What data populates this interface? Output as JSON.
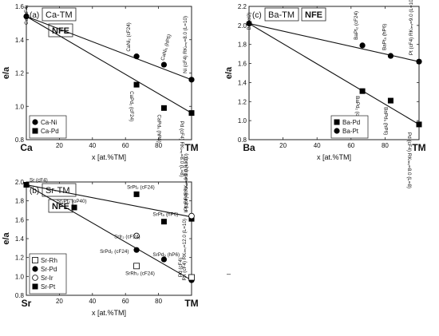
{
  "chart_data": [
    {
      "type": "scatter",
      "id": "ca",
      "panel_label": "(a)",
      "system": "Ca-TM",
      "badge": "NFE",
      "xlabel": "x [at.%TM]",
      "ylabel": "e/a",
      "xlim": [
        0,
        100
      ],
      "ylim": [
        0.8,
        1.6
      ],
      "x_ticks": [
        "20",
        "40",
        "60",
        "80"
      ],
      "y_ticks": [
        "0.8",
        "1.0",
        "1.2",
        "1.4",
        "1.6"
      ],
      "x_end_labels": [
        "Ca",
        "TM"
      ],
      "legend": {
        "position": "bottom-left",
        "entries": [
          {
            "label": "Ca-Ni",
            "marker": "circle"
          },
          {
            "label": "Ca-Pd",
            "marker": "square"
          }
        ]
      },
      "series": [
        {
          "name": "Ca-Ni",
          "marker": "circle",
          "points": [
            {
              "x": 0,
              "y": 1.54,
              "label": "Ca (cF4)"
            },
            {
              "x": 66.7,
              "y": 1.3,
              "label": "CaNi₂ (cF24)"
            },
            {
              "x": 83.3,
              "y": 1.25,
              "label": "CaNi₅ (hP6)"
            },
            {
              "x": 100,
              "y": 1.16,
              "label": "Ni (cF4) RKₗₘᵣ=8.0 (L=10)"
            }
          ]
        },
        {
          "name": "Ca-Pd",
          "marker": "square",
          "points": [
            {
              "x": 66.7,
              "y": 1.13,
              "label": "CaPd₂ (cF24)"
            },
            {
              "x": 83.3,
              "y": 0.99,
              "label": "CaPd₅ (hP6)"
            },
            {
              "x": 100,
              "y": 0.96,
              "label": "Pd (cF4) RKₗₘᵣ=8.0 (L=8)"
            }
          ]
        }
      ],
      "fit_lines": [
        {
          "from": [
            0,
            1.54
          ],
          "to": [
            100,
            1.16
          ],
          "width": 1.3
        },
        {
          "from": [
            0,
            1.54
          ],
          "to": [
            100,
            0.96
          ],
          "width": 1.3
        }
      ]
    },
    {
      "type": "scatter",
      "id": "ba",
      "panel_label": "(c)",
      "system": "Ba-TM",
      "badge": "NFE",
      "xlabel": "x [at.%TM]",
      "ylabel": "e/a",
      "xlim": [
        0,
        100
      ],
      "ylim": [
        0.8,
        2.2
      ],
      "x_ticks": [
        "20",
        "40",
        "60",
        "80"
      ],
      "y_ticks": [
        "0.8",
        "1.0",
        "1.2",
        "1.4",
        "1.6",
        "1.8",
        "2.0",
        "2.2"
      ],
      "x_end_labels": [
        "Ba",
        "TM"
      ],
      "legend": {
        "position": "bottom-right",
        "entries": [
          {
            "label": "Ba-Pd",
            "marker": "square"
          },
          {
            "label": "Ba-Pt",
            "marker": "circle"
          }
        ]
      },
      "series": [
        {
          "name": "Ba-Pt",
          "marker": "circle",
          "points": [
            {
              "x": 0,
              "y": 2.02,
              "label": "Ba (cI2)"
            },
            {
              "x": 66.7,
              "y": 1.79,
              "label": "BaPt₂ (cF24)"
            },
            {
              "x": 83.3,
              "y": 1.68,
              "label": "BaPt₅ (hP6)"
            },
            {
              "x": 100,
              "y": 1.62,
              "label": "Pt (cF4) RKₗₘᵣ=9.0 (L=10)"
            }
          ]
        },
        {
          "name": "Ba-Pd",
          "marker": "square",
          "points": [
            {
              "x": 66.7,
              "y": 1.31,
              "label": "BaPd₂ (cF24)"
            },
            {
              "x": 83.3,
              "y": 1.21,
              "label": "BaPd₅ (hP6)"
            },
            {
              "x": 100,
              "y": 0.96,
              "label": "Pd (cF4) RKₗₘᵣ=8.0 (L=8)"
            }
          ]
        }
      ],
      "fit_lines": [
        {
          "from": [
            0,
            2.02
          ],
          "to": [
            100,
            1.62
          ],
          "width": 1.3
        },
        {
          "from": [
            0,
            2.02
          ],
          "to": [
            100,
            0.96
          ],
          "width": 1.3
        }
      ]
    },
    {
      "type": "scatter",
      "id": "sr",
      "panel_label": "(b)",
      "system": "Sr-TM",
      "badge": "NFE",
      "xlabel": "x [at.%TM]",
      "ylabel": "e/a",
      "xlim": [
        0,
        100
      ],
      "ylim": [
        0.8,
        2.0
      ],
      "x_ticks": [
        "20",
        "40",
        "60",
        "80"
      ],
      "y_ticks": [
        "0.8",
        "1.0",
        "1.2",
        "1.4",
        "1.6",
        "1.8",
        "2.0"
      ],
      "x_end_labels": [
        "Sr",
        "TM"
      ],
      "legend": {
        "position": "bottom-left",
        "entries": [
          {
            "label": "Sr-Rh",
            "marker": "open-square"
          },
          {
            "label": "Sr-Pd",
            "marker": "circle"
          },
          {
            "label": "Sr-Ir",
            "marker": "open-circle"
          },
          {
            "label": "Sr-Pt",
            "marker": "square"
          }
        ]
      },
      "series": [
        {
          "name": "Sr-Pt",
          "marker": "square",
          "points": [
            {
              "x": 0,
              "y": 1.97,
              "label": "Sr (cF4)"
            },
            {
              "x": 29,
              "y": 1.73,
              "label": "Sr₇Pt₃ (oP40)"
            },
            {
              "x": 66.7,
              "y": 1.87,
              "label": "SrPt₂ (cF24)"
            },
            {
              "x": 83.3,
              "y": 1.58,
              "label": "SrPt₅ (hP6)"
            },
            {
              "x": 100,
              "y": 1.61,
              "label": "Pt (cF4) RKₗₘᵣ=9.0 (L=10)"
            }
          ]
        },
        {
          "name": "Sr-Pd",
          "marker": "circle",
          "points": [
            {
              "x": 66.7,
              "y": 1.28,
              "label": "SrPd₂ (cF24)"
            },
            {
              "x": 83.3,
              "y": 1.18,
              "label": "SrPd₅ (hP6)"
            },
            {
              "x": 100,
              "y": 0.96,
              "label": "Pd (cF4)"
            }
          ]
        },
        {
          "name": "Sr-Ir",
          "marker": "open-circle",
          "points": [
            {
              "x": 66.7,
              "y": 1.43,
              "label": "SrIr₂ (cF24)"
            },
            {
              "x": 100,
              "y": 1.64,
              "label": "Ir (cF4) RKₗₘᵣ=9.0 (L=10)"
            }
          ]
        },
        {
          "name": "Sr-Rh",
          "marker": "open-square",
          "points": [
            {
              "x": 66.7,
              "y": 1.11,
              "label": "SrRh₂ (cF24)"
            },
            {
              "x": 100,
              "y": 0.99,
              "label": "Rh (cF4) RKₗₘᵣ=12.0 (L=10)"
            }
          ]
        }
      ],
      "fit_lines": [
        {
          "from": [
            0,
            1.97
          ],
          "to": [
            100,
            1.63
          ],
          "width": 1.3
        },
        {
          "from": [
            0,
            1.97
          ],
          "to": [
            100,
            0.96
          ],
          "width": 1.3
        }
      ]
    }
  ],
  "dash_mark": "–"
}
